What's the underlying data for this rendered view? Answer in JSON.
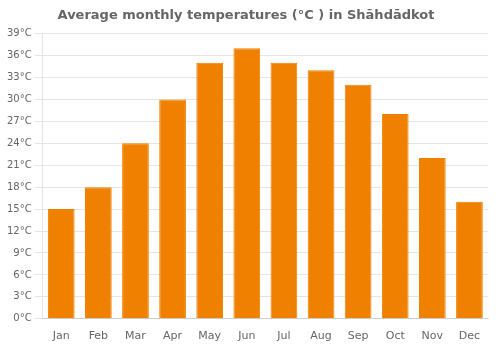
{
  "chart_data": {
    "type": "bar",
    "title": "Average monthly temperatures (°C ) in Shāhdādkot",
    "categories": [
      "Jan",
      "Feb",
      "Mar",
      "Apr",
      "May",
      "Jun",
      "Jul",
      "Aug",
      "Sep",
      "Oct",
      "Nov",
      "Dec"
    ],
    "values": [
      15,
      18,
      24,
      30,
      35,
      37,
      35,
      34,
      32,
      28,
      22,
      16
    ],
    "color": "#F08000",
    "ylim": [
      0,
      39
    ],
    "yticks": [
      {
        "value": 0,
        "label": "0°C"
      },
      {
        "value": 3,
        "label": "3°C"
      },
      {
        "value": 6,
        "label": "6°C"
      },
      {
        "value": 9,
        "label": "9°C"
      },
      {
        "value": 12,
        "label": "12°C"
      },
      {
        "value": 15,
        "label": "15°C"
      },
      {
        "value": 18,
        "label": "18°C"
      },
      {
        "value": 21,
        "label": "21°C"
      },
      {
        "value": 24,
        "label": "24°C"
      },
      {
        "value": 27,
        "label": "27°C"
      },
      {
        "value": 30,
        "label": "30°C"
      },
      {
        "value": 33,
        "label": "33°C"
      },
      {
        "value": 36,
        "label": "36°C"
      },
      {
        "value": 39,
        "label": "39°C"
      }
    ],
    "grid": true
  }
}
